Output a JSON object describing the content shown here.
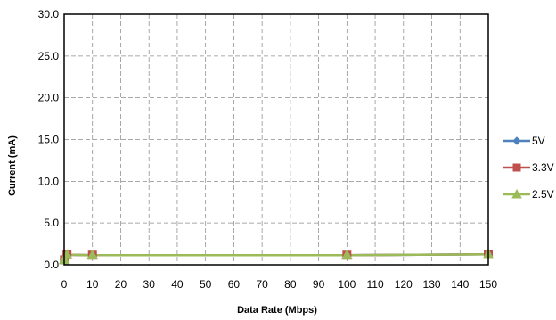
{
  "chart_data": {
    "type": "line",
    "title": "",
    "xlabel": "Data Rate (Mbps)",
    "ylabel": "Current (mA)",
    "xlim": [
      0,
      150
    ],
    "ylim": [
      0,
      30
    ],
    "x_ticks": [
      0,
      10,
      20,
      30,
      40,
      50,
      60,
      70,
      80,
      90,
      100,
      110,
      120,
      130,
      140,
      150
    ],
    "x_tick_labels": [
      "0",
      "10",
      "20",
      "30",
      "40",
      "50",
      "60",
      "70",
      "80",
      "90",
      "100",
      "110",
      "120",
      "130",
      "140",
      "150"
    ],
    "y_ticks": [
      0,
      5,
      10,
      15,
      20,
      25,
      30
    ],
    "y_tick_labels": [
      "0.0",
      "5.0",
      "10.0",
      "15.0",
      "20.0",
      "25.0",
      "30.0"
    ],
    "grid": true,
    "grid_style": "dashed",
    "legend_position": "right",
    "series": [
      {
        "name": "5V",
        "color": "#4f81bd",
        "marker": "diamond",
        "x": [
          0.1,
          1,
          10,
          100,
          150
        ],
        "y": [
          0.6,
          1.2,
          1.15,
          1.15,
          1.25
        ]
      },
      {
        "name": "3.3V",
        "color": "#c0504d",
        "marker": "square",
        "x": [
          0.1,
          1,
          10,
          100,
          150
        ],
        "y": [
          0.6,
          1.2,
          1.15,
          1.15,
          1.25
        ]
      },
      {
        "name": "2.5V",
        "color": "#9bbb59",
        "marker": "triangle",
        "x": [
          0.1,
          1,
          10,
          100,
          150
        ],
        "y": [
          0.6,
          1.2,
          1.15,
          1.15,
          1.25
        ]
      }
    ]
  }
}
